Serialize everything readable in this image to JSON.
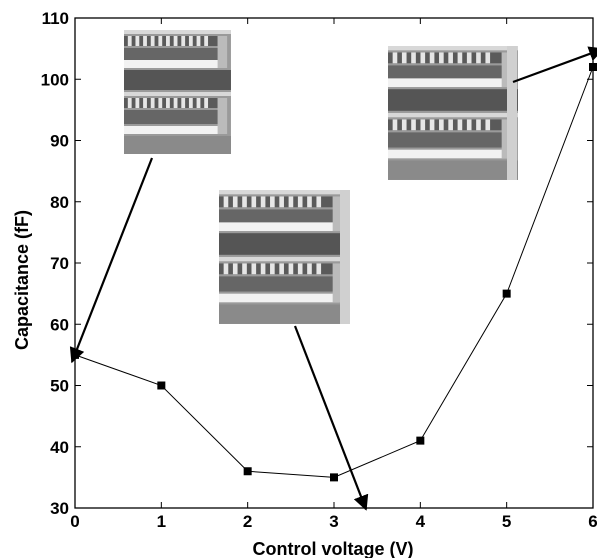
{
  "chart_data": {
    "type": "line",
    "title": "",
    "xlabel": "Control voltage (V)",
    "ylabel": "Capacitance (fF)",
    "xlim": [
      0,
      6
    ],
    "ylim": [
      30,
      110
    ],
    "xticks": [
      "0",
      "1",
      "2",
      "3",
      "4",
      "5",
      "6"
    ],
    "yticks": [
      "30",
      "40",
      "50",
      "60",
      "70",
      "80",
      "90",
      "100",
      "110"
    ],
    "grid": false,
    "legend": "none",
    "series": [
      {
        "x": [
          0,
          1,
          2,
          3,
          4,
          5,
          6
        ],
        "y": [
          55,
          50,
          36,
          35,
          41,
          65,
          102
        ],
        "marker": "square",
        "color": "#000000"
      }
    ],
    "annotations": [
      {
        "type": "inset-micrograph",
        "points_to": [
          0,
          55
        ]
      },
      {
        "type": "inset-micrograph",
        "points_to": [
          3,
          35
        ]
      },
      {
        "type": "inset-micrograph",
        "points_to": [
          6,
          102
        ]
      }
    ]
  }
}
